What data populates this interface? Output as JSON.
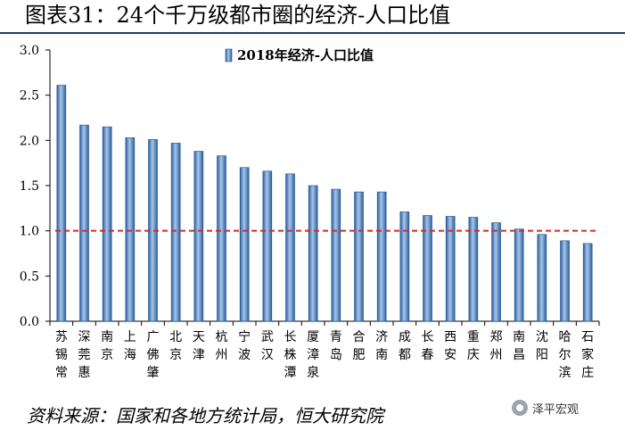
{
  "title": "图表31：24个千万级都市圈的经济-人口比值",
  "source": "资料来源：国家和各地方统计局，恒大研究院",
  "watermark": "泽平宏观",
  "colors": {
    "bar_top": "#a9c6e8",
    "bar_mid": "#4f86c6",
    "bar_edge": "#1f4f8f",
    "ref_line": "#d62a2a",
    "title_rule": "#1f3b73"
  },
  "chart_data": {
    "type": "bar",
    "title": "",
    "xlabel": "",
    "ylabel": "",
    "legend": {
      "label": "2018年经济-人口比值",
      "position": "top-center"
    },
    "categories": [
      "苏锡常",
      "深莞惠",
      "南京",
      "上海",
      "广佛肇",
      "北京",
      "天津",
      "杭州",
      "宁波",
      "武汉",
      "长株潭",
      "厦漳泉",
      "青岛",
      "合肥",
      "济南",
      "成都",
      "长春",
      "西安",
      "重庆",
      "郑州",
      "南昌",
      "沈阳",
      "哈尔滨",
      "石家庄"
    ],
    "values": [
      2.61,
      2.17,
      2.15,
      2.03,
      2.01,
      1.97,
      1.88,
      1.83,
      1.7,
      1.66,
      1.63,
      1.5,
      1.46,
      1.43,
      1.43,
      1.21,
      1.17,
      1.16,
      1.15,
      1.09,
      1.02,
      0.96,
      0.89,
      0.86
    ],
    "ylim": [
      0,
      3.0
    ],
    "yticks": [
      "0.0",
      "0.5",
      "1.0",
      "1.5",
      "2.0",
      "2.5",
      "3.0"
    ],
    "reference_line": 1.0,
    "grid": false
  }
}
